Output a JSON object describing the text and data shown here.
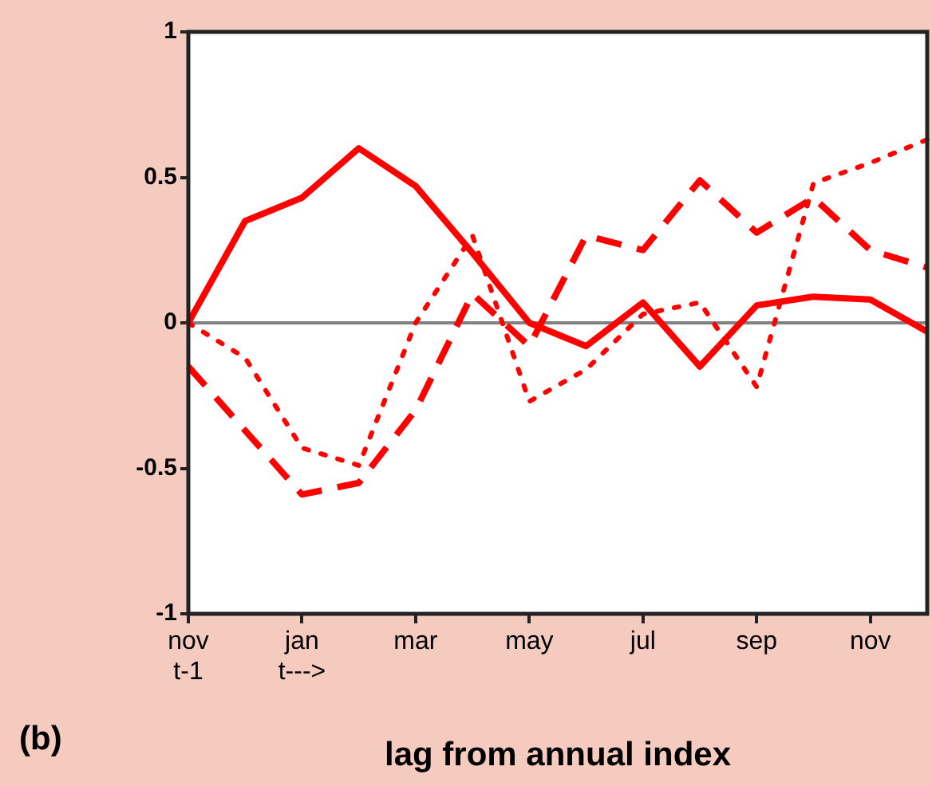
{
  "chart_data": {
    "type": "line",
    "xlabel": "lag from annual index",
    "annotations": [
      "(b)"
    ],
    "categories": [
      "nov\nt-1",
      null,
      "jan\nt--->",
      null,
      "mar",
      null,
      "may",
      null,
      "jul",
      null,
      "sep",
      null,
      "nov",
      null
    ],
    "series": [
      {
        "color": "#ff0000",
        "line_style": "solid",
        "values": [
          0,
          0.35,
          0.43,
          0.6,
          0.47,
          0.24,
          0,
          -0.08,
          0.07,
          -0.15,
          0.06,
          0.09,
          0.08,
          -0.03
        ]
      },
      {
        "color": "#ff0000",
        "line_style": "dashed",
        "values": [
          -0.15,
          -0.37,
          -0.59,
          -0.55,
          -0.3,
          0.1,
          -0.08,
          0.3,
          0.25,
          0.49,
          0.31,
          0.43,
          0.25,
          0.19
        ]
      },
      {
        "color": "#ff0000",
        "line_style": "dotted",
        "values": [
          0,
          -0.12,
          -0.43,
          -0.49,
          0,
          0.3,
          -0.27,
          -0.16,
          0.03,
          0.07,
          -0.22,
          0.48,
          0.55,
          0.63
        ]
      }
    ],
    "ylim": [
      -1,
      1
    ],
    "yticks": [
      -1,
      -0.5,
      0,
      0.5,
      1
    ],
    "grid": false,
    "legend": false,
    "marker": "none",
    "ref_lines": [
      {
        "axis": "y",
        "value": 0,
        "color": "#808080"
      }
    ]
  }
}
